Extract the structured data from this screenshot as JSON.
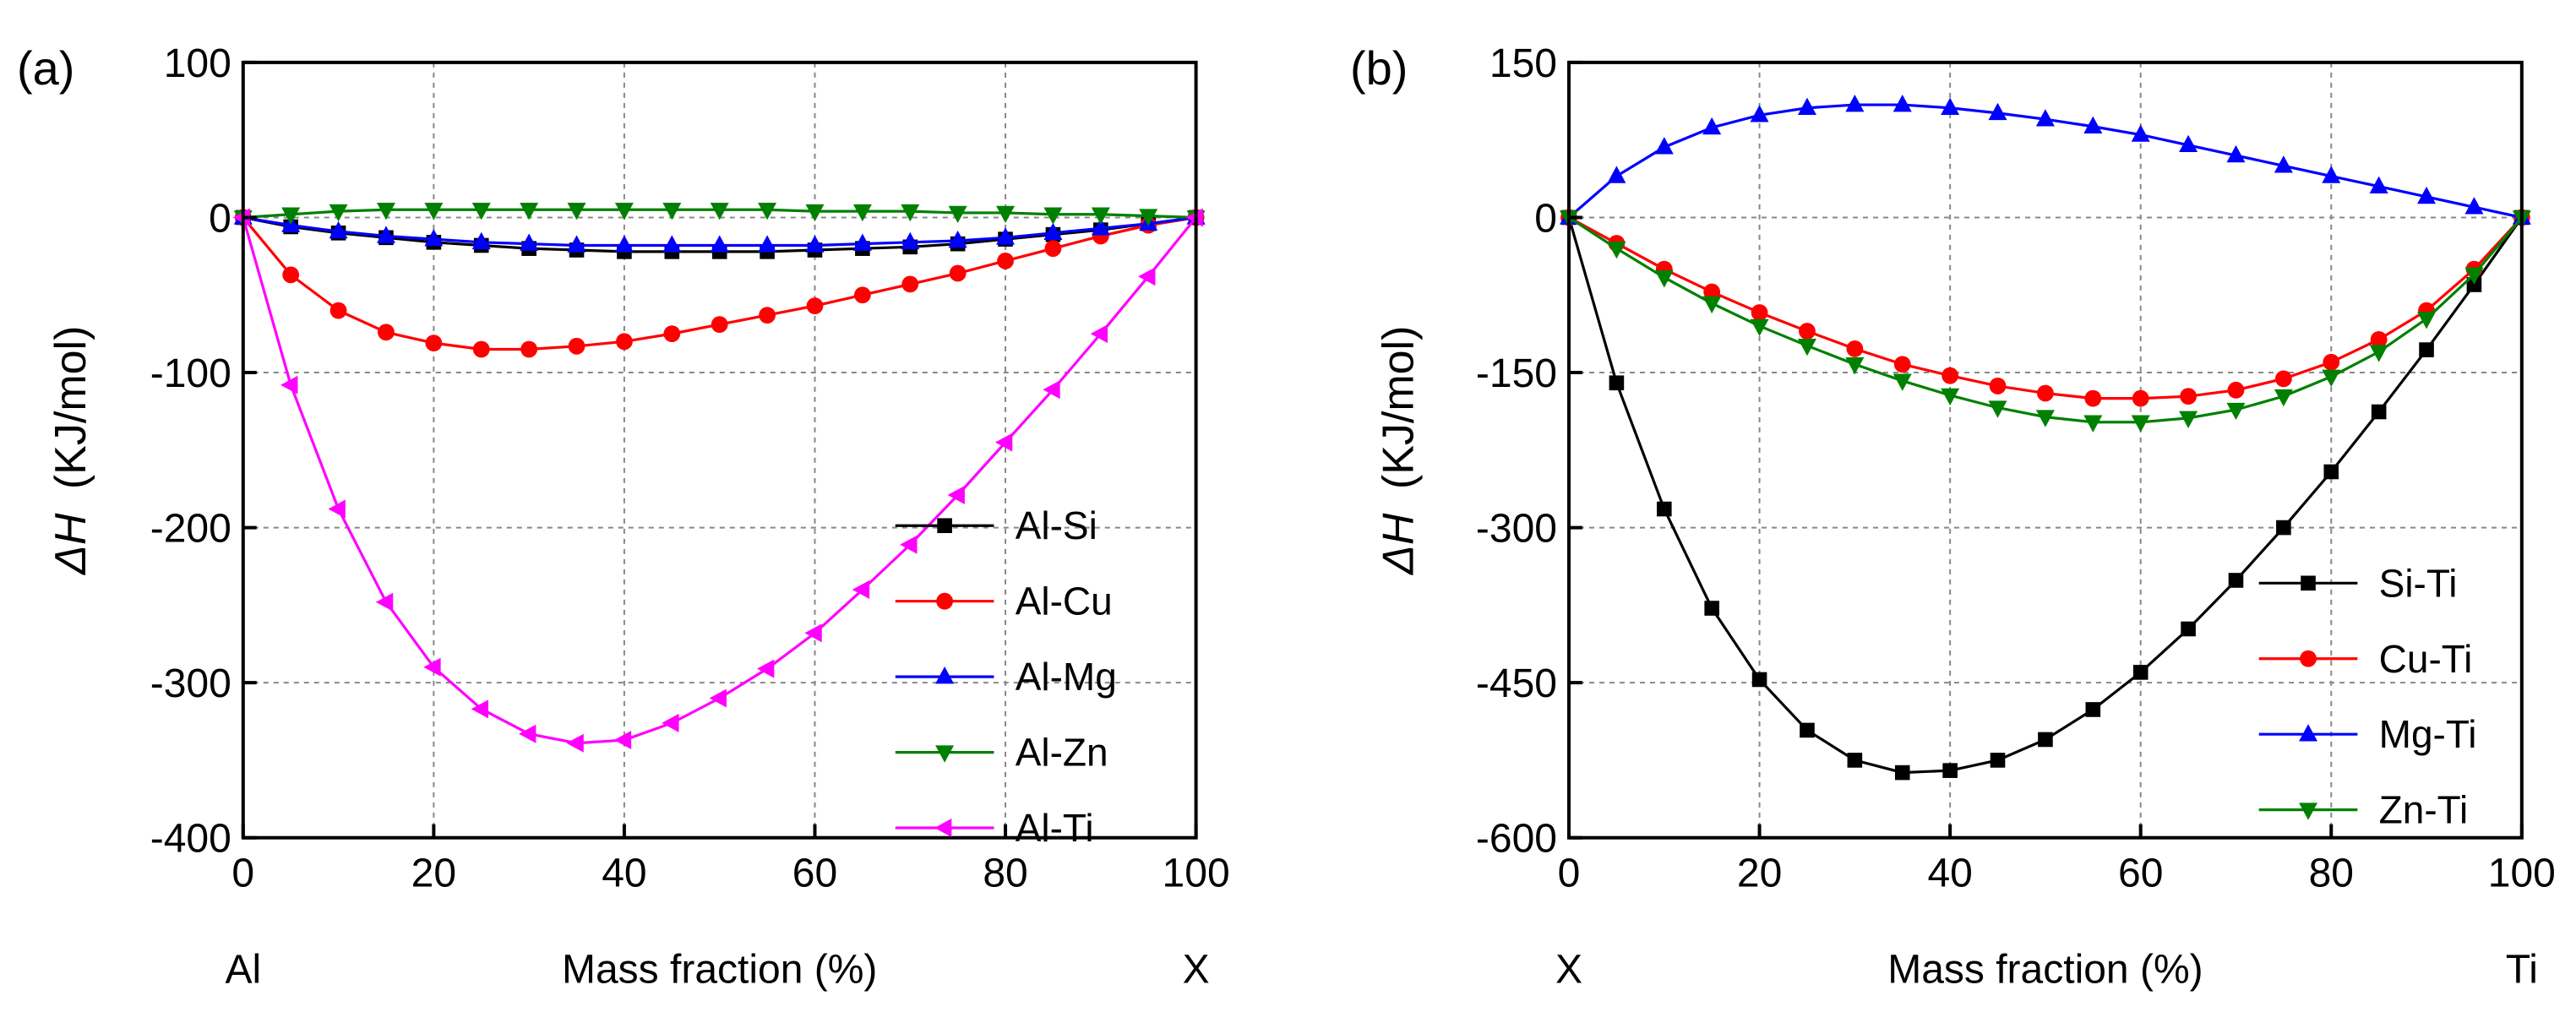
{
  "chart_data": [
    {
      "type": "line",
      "panel_label": "(a)",
      "xlabel": "Mass fraction (%)",
      "xlabel_left": "Al",
      "xlabel_right": "X",
      "ylabel_symbol": "ΔH",
      "ylabel_unit": "(KJ/mol)",
      "xlim": [
        0,
        100
      ],
      "ylim": [
        -400,
        100
      ],
      "xticks": [
        0,
        20,
        40,
        60,
        80,
        100
      ],
      "yticks": [
        -400,
        -300,
        -200,
        -100,
        0,
        100
      ],
      "grid": true,
      "legend_position": "bottom-right",
      "x": [
        0,
        5,
        10,
        15,
        20,
        25,
        30,
        35,
        40,
        45,
        50,
        55,
        60,
        65,
        70,
        75,
        80,
        85,
        90,
        95,
        100
      ],
      "series": [
        {
          "name": "Al-Si",
          "color": "#000000",
          "marker": "square",
          "values": [
            0,
            -6,
            -10,
            -13,
            -16,
            -18,
            -20,
            -21,
            -22,
            -22,
            -22,
            -22,
            -21,
            -20,
            -19,
            -17,
            -14,
            -11,
            -8,
            -4,
            0
          ]
        },
        {
          "name": "Al-Cu",
          "color": "#ff0000",
          "marker": "circle",
          "values": [
            0,
            -37,
            -60,
            -74,
            -81,
            -85,
            -85,
            -83,
            -80,
            -75,
            -69,
            -63,
            -57,
            -50,
            -43,
            -36,
            -28,
            -20,
            -12,
            -5,
            0
          ]
        },
        {
          "name": "Al-Mg",
          "color": "#0000ff",
          "marker": "triangle-up",
          "values": [
            0,
            -5,
            -9,
            -12,
            -14,
            -16,
            -17,
            -18,
            -18,
            -18,
            -18,
            -18,
            -18,
            -17,
            -16,
            -15,
            -13,
            -10,
            -7,
            -4,
            0
          ]
        },
        {
          "name": "Al-Zn",
          "color": "#008000",
          "marker": "triangle-down",
          "values": [
            0,
            2,
            4,
            5,
            5,
            5,
            5,
            5,
            5,
            5,
            5,
            5,
            4,
            4,
            4,
            3,
            3,
            2,
            2,
            1,
            0
          ]
        },
        {
          "name": "Al-Ti",
          "color": "#ff00ff",
          "marker": "triangle-left",
          "values": [
            0,
            -108,
            -188,
            -248,
            -290,
            -317,
            -333,
            -339,
            -337,
            -326,
            -310,
            -291,
            -268,
            -240,
            -211,
            -179,
            -145,
            -111,
            -75,
            -38,
            0
          ]
        }
      ]
    },
    {
      "type": "line",
      "panel_label": "(b)",
      "xlabel": "Mass fraction (%)",
      "xlabel_left": "X",
      "xlabel_right": "Ti",
      "ylabel_symbol": "ΔH",
      "ylabel_unit": "(KJ/mol)",
      "xlim": [
        0,
        100
      ],
      "ylim": [
        -600,
        150
      ],
      "xticks": [
        0,
        20,
        40,
        60,
        80,
        100
      ],
      "yticks": [
        -600,
        -450,
        -300,
        -150,
        0,
        150
      ],
      "grid": true,
      "legend_position": "bottom-right",
      "x": [
        0,
        5,
        10,
        15,
        20,
        25,
        30,
        35,
        40,
        45,
        50,
        55,
        60,
        65,
        70,
        75,
        80,
        85,
        90,
        95,
        100
      ],
      "series": [
        {
          "name": "Si-Ti",
          "color": "#000000",
          "marker": "square",
          "values": [
            0,
            -160,
            -282,
            -378,
            -447,
            -496,
            -525,
            -537,
            -535,
            -525,
            -505,
            -476,
            -440,
            -398,
            -351,
            -300,
            -246,
            -188,
            -128,
            -65,
            0
          ]
        },
        {
          "name": "Cu-Ti",
          "color": "#ff0000",
          "marker": "circle",
          "values": [
            0,
            -25,
            -50,
            -72,
            -92,
            -110,
            -127,
            -142,
            -153,
            -163,
            -170,
            -175,
            -175,
            -173,
            -167,
            -156,
            -140,
            -118,
            -90,
            -50,
            0
          ]
        },
        {
          "name": "Mg-Ti",
          "color": "#0000ff",
          "marker": "triangle-up",
          "values": [
            0,
            40,
            68,
            87,
            99,
            106,
            109,
            109,
            106,
            101,
            95,
            88,
            80,
            70,
            60,
            50,
            40,
            30,
            20,
            10,
            0
          ]
        },
        {
          "name": "Zn-Ti",
          "color": "#008000",
          "marker": "triangle-down",
          "values": [
            0,
            -30,
            -58,
            -83,
            -105,
            -124,
            -142,
            -158,
            -172,
            -184,
            -193,
            -198,
            -198,
            -194,
            -186,
            -173,
            -154,
            -130,
            -98,
            -55,
            0
          ]
        }
      ]
    }
  ]
}
